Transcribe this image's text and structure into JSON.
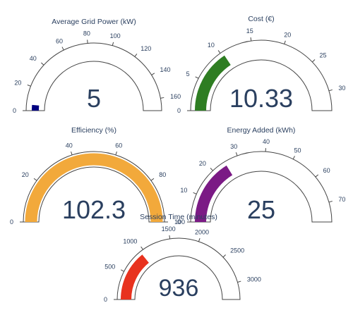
{
  "chart_data": [
    {
      "type": "gauge",
      "title": "Average Grid Power (kW)",
      "value": 5,
      "value_label": "5",
      "range": [
        0,
        170
      ],
      "ticks": [
        0,
        20,
        40,
        60,
        80,
        100,
        120,
        140,
        160
      ],
      "bar_color": "#000080"
    },
    {
      "type": "gauge",
      "title": "Cost (€)",
      "value": 10.33,
      "value_label": "10.33",
      "range": [
        0,
        33
      ],
      "ticks": [
        0,
        5,
        10,
        15,
        20,
        25,
        30
      ],
      "bar_color": "#2e7d22"
    },
    {
      "type": "gauge",
      "title": "Efficiency (%)",
      "value": 102.3,
      "value_label": "102.3",
      "range": [
        0,
        100
      ],
      "ticks": [
        0,
        20,
        40,
        60,
        80,
        100
      ],
      "bar_color": "#f2a93b"
    },
    {
      "type": "gauge",
      "title": "Energy Added (kWh)",
      "value": 25,
      "value_label": "25",
      "range": [
        0,
        77
      ],
      "ticks": [
        0,
        10,
        20,
        30,
        40,
        50,
        60,
        70
      ],
      "bar_color": "#7b1a85"
    },
    {
      "type": "gauge",
      "title": "Session Time (minutes)",
      "value": 936,
      "value_label": "936",
      "range": [
        0,
        3300
      ],
      "ticks": [
        0,
        500,
        1000,
        1500,
        2000,
        2500,
        3000
      ],
      "bar_color": "#e8321e"
    }
  ]
}
